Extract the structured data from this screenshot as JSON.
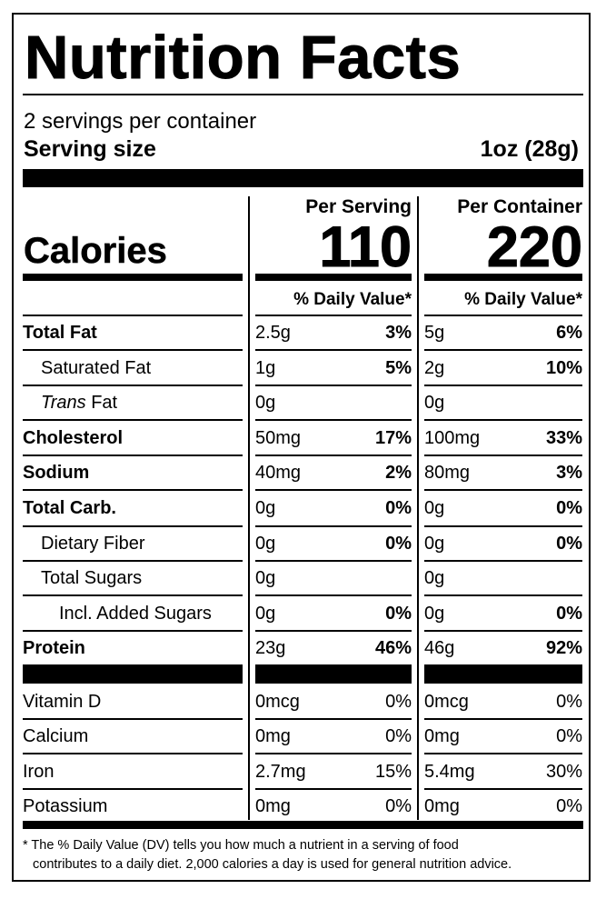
{
  "title": "Nutrition Facts",
  "servings_per_container": "2 servings per container",
  "serving_size_label": "Serving size",
  "serving_size_value": "1oz (28g)",
  "calories_label": "Calories",
  "per_serving": {
    "header": "Per Serving",
    "calories": "110",
    "dv_header": "% Daily Value*"
  },
  "per_container": {
    "header": "Per Container",
    "calories": "220",
    "dv_header": "% Daily Value*"
  },
  "nutrients": [
    {
      "name": "Total Fat",
      "bold": true,
      "indent": 0,
      "serving_amount": "2.5g",
      "serving_dv": "3%",
      "container_amount": "5g",
      "container_dv": "6%"
    },
    {
      "name": "Saturated Fat",
      "bold": false,
      "indent": 1,
      "serving_amount": "1g",
      "serving_dv": "5%",
      "container_amount": "2g",
      "container_dv": "10%"
    },
    {
      "name_italic": "Trans",
      "name": " Fat",
      "bold": false,
      "indent": 1,
      "serving_amount": "0g",
      "serving_dv": "",
      "container_amount": "0g",
      "container_dv": ""
    },
    {
      "name": "Cholesterol",
      "bold": true,
      "indent": 0,
      "serving_amount": "50mg",
      "serving_dv": "17%",
      "container_amount": "100mg",
      "container_dv": "33%"
    },
    {
      "name": "Sodium",
      "bold": true,
      "indent": 0,
      "serving_amount": "40mg",
      "serving_dv": "2%",
      "container_amount": "80mg",
      "container_dv": "3%"
    },
    {
      "name": "Total Carb.",
      "bold": true,
      "indent": 0,
      "serving_amount": "0g",
      "serving_dv": "0%",
      "container_amount": "0g",
      "container_dv": "0%"
    },
    {
      "name": "Dietary Fiber",
      "bold": false,
      "indent": 1,
      "serving_amount": "0g",
      "serving_dv": "0%",
      "container_amount": "0g",
      "container_dv": "0%"
    },
    {
      "name": "Total Sugars",
      "bold": false,
      "indent": 1,
      "serving_amount": "0g",
      "serving_dv": "",
      "container_amount": "0g",
      "container_dv": ""
    },
    {
      "name": "Incl. Added Sugars",
      "bold": false,
      "indent": 2,
      "serving_amount": "0g",
      "serving_dv": "0%",
      "container_amount": "0g",
      "container_dv": "0%"
    },
    {
      "name": "Protein",
      "bold": true,
      "indent": 0,
      "serving_amount": "23g",
      "serving_dv": "46%",
      "container_amount": "46g",
      "container_dv": "92%"
    }
  ],
  "micronutrients": [
    {
      "name": "Vitamin D",
      "serving_amount": "0mcg",
      "serving_dv": "0%",
      "container_amount": "0mcg",
      "container_dv": "0%"
    },
    {
      "name": "Calcium",
      "serving_amount": "0mg",
      "serving_dv": "0%",
      "container_amount": "0mg",
      "container_dv": "0%"
    },
    {
      "name": "Iron",
      "serving_amount": "2.7mg",
      "serving_dv": "15%",
      "container_amount": "5.4mg",
      "container_dv": "30%"
    },
    {
      "name": "Potassium",
      "serving_amount": "0mg",
      "serving_dv": "0%",
      "container_amount": "0mg",
      "container_dv": "0%"
    }
  ],
  "footnote_line1": "* The % Daily Value (DV) tells you how much a nutrient in a serving of food",
  "footnote_line2": "contributes to a daily diet. 2,000 calories a day is used for general nutrition advice."
}
